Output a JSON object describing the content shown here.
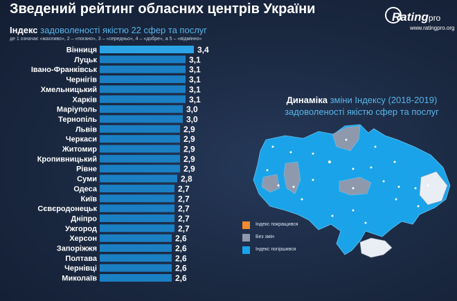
{
  "header": {
    "title": "Зведений рейтинг обласних центрів України"
  },
  "logo": {
    "name": "Rating",
    "name_suffix": "pro",
    "url": "www.ratingpro.org"
  },
  "subtitle": {
    "lead": "Індекс",
    "rest": " задоволеності якістю 22 сфер та послуг"
  },
  "scale_note": "де 1 означає «жахливо», 2 – «погано», 3 – «середньо», 4 – «добре», а 5 – «відмінно»",
  "colors": {
    "bar": "#1b7fc4",
    "bar_top": "#2aa4e6",
    "map_worse": "#1aa3e8",
    "map_same": "#8f99ad",
    "map_better": "#f28a2e",
    "background": "#1b2a44"
  },
  "chart_data": {
    "type": "bar",
    "orientation": "horizontal",
    "title": "Індекс задоволеності якістю 22 сфер та послуг",
    "categories": [
      "Вінниця",
      "Луцьк",
      "Івано-Франківськ",
      "Чернігів",
      "Хмельницький",
      "Харків",
      "Маріуполь",
      "Тернопіль",
      "Львів",
      "Черкаси",
      "Житомир",
      "Кропивницький",
      "Рівне",
      "Суми",
      "Одеса",
      "Київ",
      "Сєвєродонецьк",
      "Дніпро",
      "Ужгород",
      "Херсон",
      "Запоріжжя",
      "Полтава",
      "Чернівці",
      "Миколаїв"
    ],
    "values": [
      3.4,
      3.1,
      3.1,
      3.1,
      3.1,
      3.1,
      3.0,
      3.0,
      2.9,
      2.9,
      2.9,
      2.9,
      2.9,
      2.8,
      2.7,
      2.7,
      2.7,
      2.7,
      2.7,
      2.6,
      2.6,
      2.6,
      2.6,
      2.6
    ],
    "value_labels": [
      "3,4",
      "3,1",
      "3,1",
      "3,1",
      "3,1",
      "3,1",
      "3,0",
      "3,0",
      "2,9",
      "2,9",
      "2,9",
      "2,9",
      "2,9",
      "2,8",
      "2,7",
      "2,7",
      "2,7",
      "2,7",
      "2,7",
      "2,6",
      "2,6",
      "2,6",
      "2,6",
      "2,6"
    ],
    "xlim": [
      0,
      3.4
    ]
  },
  "map": {
    "title_lead": "Динаміка",
    "title_rest": " зміни Індексу (2018-2019)",
    "title_line2": "задоволеності якістю сфер та послуг",
    "legend": [
      {
        "label": "Індекс покращився",
        "color": "#f28a2e"
      },
      {
        "label": "Без змін",
        "color": "#8f99ad"
      },
      {
        "label": "Індекс погіршився",
        "color": "#1aa3e8"
      }
    ]
  }
}
